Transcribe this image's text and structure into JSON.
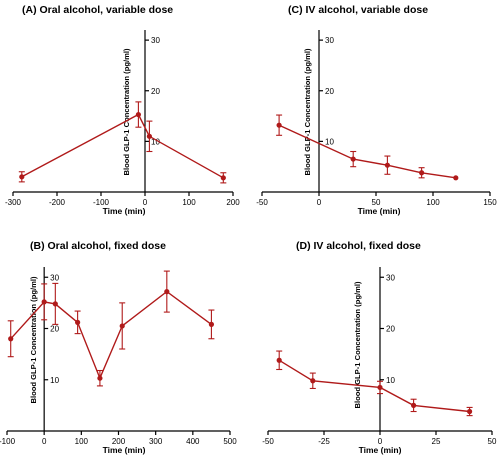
{
  "chart_data": [
    {
      "type": "line",
      "title": "(A) Oral alcohol, variable dose",
      "xlabel": "Time (min)",
      "ylabel": "Blood GLP-1 Concentration (pg/ml)",
      "xlim": [
        -300,
        200
      ],
      "ylim": [
        0,
        32
      ],
      "xticks": [
        -300,
        -200,
        -100,
        0,
        100,
        200
      ],
      "yticks": [
        10,
        20,
        30
      ],
      "x": [
        -280,
        -15,
        10,
        178
      ],
      "y": [
        3,
        15.3,
        11,
        2.8
      ],
      "err": [
        1,
        2.5,
        3,
        1
      ]
    },
    {
      "type": "line",
      "title": "(C) IV alcohol, variable dose",
      "xlabel": "Time (min)",
      "ylabel": "Blood GLP-1 Concentration (pg/ml)",
      "xlim": [
        -50,
        150
      ],
      "ylim": [
        0,
        32
      ],
      "xticks": [
        -50,
        0,
        50,
        100,
        150
      ],
      "yticks": [
        10,
        20,
        30
      ],
      "x": [
        -35,
        30,
        60,
        90,
        120
      ],
      "y": [
        13.2,
        6.5,
        5.3,
        3.8,
        2.8
      ],
      "err": [
        2,
        1.5,
        1.8,
        1,
        0
      ]
    },
    {
      "type": "line",
      "title": "(B) Oral alcohol, fixed dose",
      "xlabel": "Time (min)",
      "ylabel": "Blood GLP-1 Concentration (pg/ml)",
      "xlim": [
        -100,
        500
      ],
      "ylim": [
        0,
        32
      ],
      "xticks": [
        -100,
        0,
        100,
        200,
        300,
        400,
        500
      ],
      "yticks": [
        10,
        20,
        30
      ],
      "x": [
        -90,
        0,
        30,
        90,
        150,
        210,
        330,
        450
      ],
      "y": [
        18,
        25.2,
        24.8,
        21.2,
        10.3,
        20.5,
        27.2,
        20.8
      ],
      "err": [
        3.5,
        3.5,
        4,
        2.2,
        1.5,
        4.5,
        4,
        2.8
      ]
    },
    {
      "type": "line",
      "title": "(D) IV alcohol, fixed dose",
      "xlabel": "Time (min)",
      "ylabel": "Blood GLP-1 Concentration (pg/ml)",
      "xlim": [
        -50,
        50
      ],
      "ylim": [
        0,
        32
      ],
      "xticks": [
        -50,
        -25,
        0,
        25,
        50
      ],
      "yticks": [
        10,
        20,
        30
      ],
      "x": [
        -45,
        -30,
        0,
        15,
        40
      ],
      "y": [
        13.8,
        9.8,
        8.5,
        5,
        3.8
      ],
      "err": [
        1.8,
        1.5,
        1.2,
        1.2,
        0.8
      ]
    }
  ]
}
